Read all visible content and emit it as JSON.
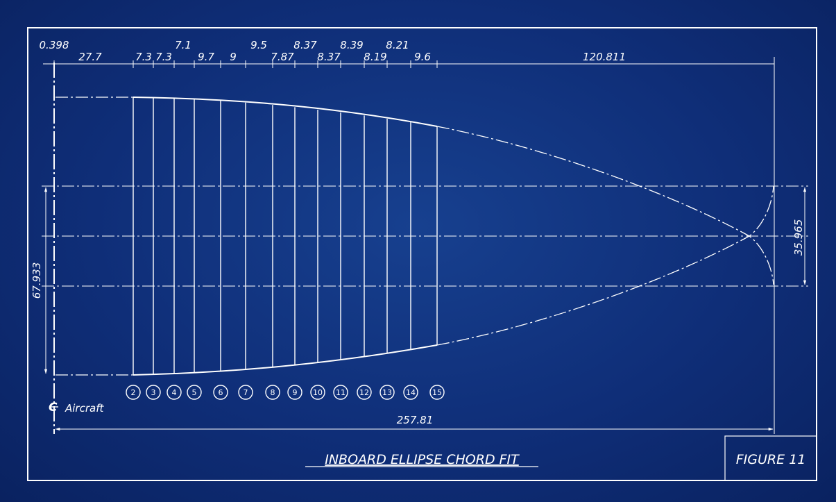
{
  "top_dims": [
    "0.398",
    "27.7",
    "7.3",
    "7.3",
    "7.1",
    "9.7",
    "9",
    "9.5",
    "7.87",
    "8.37",
    "8.37",
    "8.39",
    "8.19",
    "8.21",
    "9.6",
    "120.811"
  ],
  "stations": [
    "2",
    "3",
    "4",
    "5",
    "6",
    "7",
    "8",
    "9",
    "10",
    "11",
    "12",
    "13",
    "14",
    "15"
  ],
  "overall_length": "257.81",
  "left_height": "67.933",
  "right_height": "35.965",
  "centerline_label": "Aircraft",
  "title": "INBOARD ELLIPSE CHORD FIT",
  "figure_label": "FIGURE 11",
  "colors": {
    "background": "#0f2e78",
    "line": "#ffffff"
  }
}
